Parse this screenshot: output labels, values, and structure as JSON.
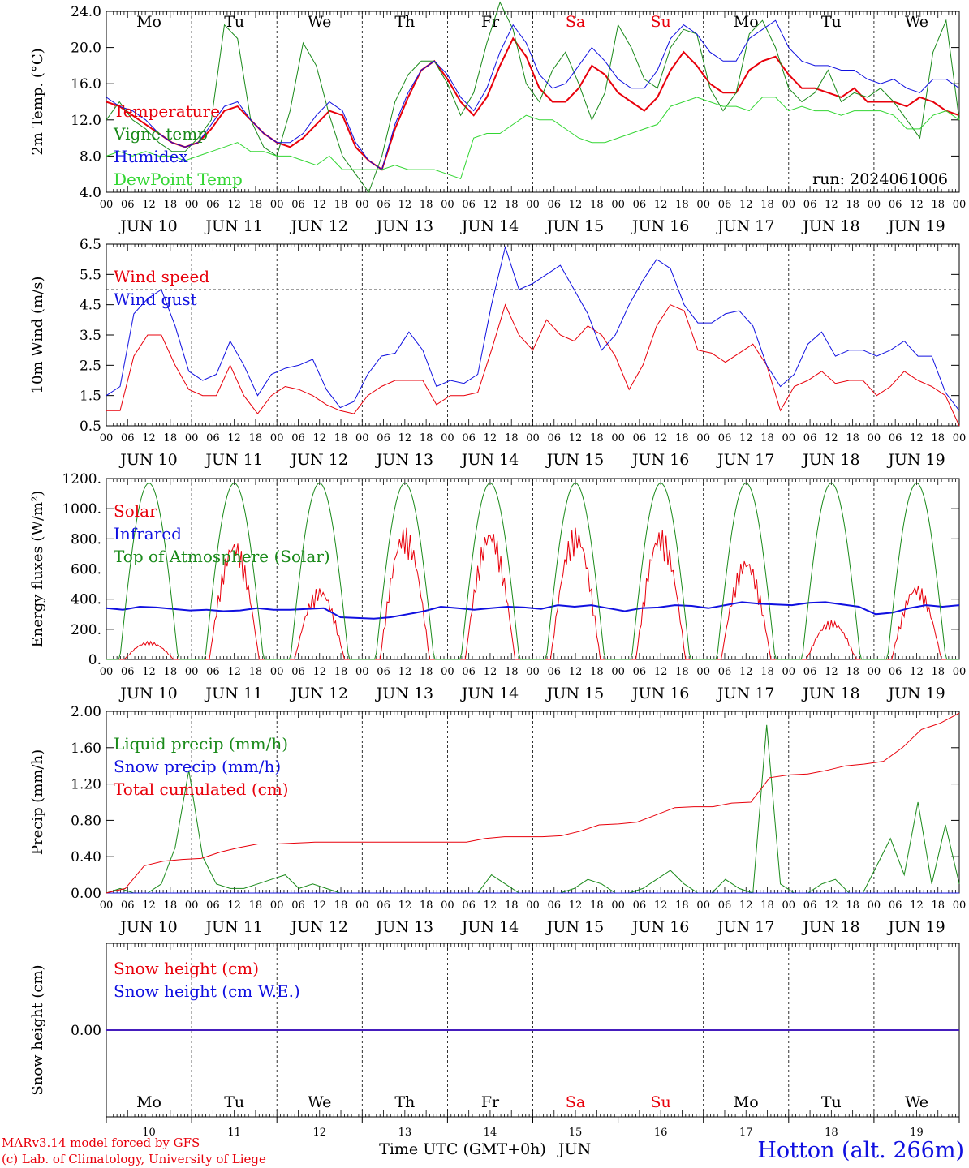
{
  "chart_data": {
    "type": "line",
    "days": [
      {
        "date": "10",
        "label": "JUN 10",
        "weekday": "Mo",
        "weekend": false
      },
      {
        "date": "11",
        "label": "JUN 11",
        "weekday": "Tu",
        "weekend": false
      },
      {
        "date": "12",
        "label": "JUN 12",
        "weekday": "We",
        "weekend": false
      },
      {
        "date": "13",
        "label": "JUN 13",
        "weekday": "Th",
        "weekend": false
      },
      {
        "date": "14",
        "label": "JUN 14",
        "weekday": "Fr",
        "weekend": false
      },
      {
        "date": "15",
        "label": "JUN 15",
        "weekday": "Sa",
        "weekend": true
      },
      {
        "date": "16",
        "label": "JUN 16",
        "weekday": "Su",
        "weekend": true
      },
      {
        "date": "17",
        "label": "JUN 17",
        "weekday": "Mo",
        "weekend": false
      },
      {
        "date": "18",
        "label": "JUN 18",
        "weekday": "Tu",
        "weekend": false
      },
      {
        "date": "19",
        "label": "JUN 19",
        "weekday": "We",
        "weekend": false
      }
    ],
    "hour_ticks": [
      "00",
      "06",
      "12",
      "18"
    ],
    "x_end_tick": "00",
    "x_title": "Time UTC (GMT+0h)",
    "x_month": "JUN",
    "colors": {
      "red": "#e8000b",
      "green": "#1a8a1a",
      "blue": "#1010e0",
      "lime": "#33d633",
      "purple": "#7a2a9a",
      "axis": "#000000"
    },
    "panels": [
      {
        "id": "temperature",
        "ylabel": "2m Temp. (°C)",
        "ylim": [
          4.0,
          24.0
        ],
        "yticks": [
          4.0,
          8.0,
          12.0,
          16.0,
          20.0,
          24.0
        ],
        "ytick_labels": [
          "4.0",
          "8.0",
          "12.0",
          "16.0",
          "20.0",
          "24.0"
        ],
        "run_label": "run: 2024061006",
        "series": [
          {
            "name": "Temperature",
            "color": "#e8000b",
            "width": 2,
            "values": [
              14.0,
              13.5,
              12.5,
              11.5,
              10.5,
              9.5,
              9.0,
              9.5,
              11.0,
              13.0,
              13.5,
              12.0,
              10.5,
              9.5,
              9.0,
              10.0,
              11.5,
              13.0,
              12.5,
              9.0,
              7.5,
              6.5,
              11.0,
              14.5,
              17.5,
              18.5,
              16.5,
              14.0,
              12.5,
              14.5,
              18.0,
              21.0,
              19.0,
              15.5,
              14.0,
              14.0,
              15.5,
              18.0,
              17.0,
              15.0,
              14.0,
              13.0,
              14.5,
              17.5,
              19.5,
              18.0,
              16.0,
              15.0,
              15.0,
              17.5,
              18.5,
              19.0,
              17.0,
              15.5,
              15.5,
              15.0,
              14.5,
              15.5,
              14.0,
              14.0,
              14.0,
              13.5,
              14.5,
              14.0,
              13.0,
              12.5
            ]
          },
          {
            "name": "Vigne temp",
            "color": "#1a8a1a",
            "width": 1,
            "values": [
              12.0,
              14.0,
              12.0,
              11.0,
              9.5,
              8.5,
              8.5,
              10.0,
              12.0,
              22.5,
              21.0,
              12.0,
              9.0,
              8.0,
              13.0,
              20.5,
              18.0,
              12.5,
              8.0,
              6.0,
              4.0,
              8.0,
              14.0,
              17.0,
              18.5,
              18.5,
              16.0,
              12.5,
              15.0,
              20.5,
              25.0,
              22.0,
              16.0,
              14.0,
              17.5,
              19.5,
              16.0,
              12.0,
              15.0,
              22.5,
              20.0,
              16.5,
              15.5,
              20.0,
              22.0,
              21.5,
              15.5,
              13.0,
              15.0,
              21.5,
              23.0,
              20.0,
              15.5,
              14.0,
              15.0,
              17.5,
              14.0,
              15.0,
              14.5,
              15.5,
              14.0,
              12.0,
              10.0,
              19.5,
              23.0,
              12.0
            ]
          },
          {
            "name": "Humidex",
            "color": "#1010e0",
            "width": 1,
            "values": [
              14.5,
              13.5,
              13.0,
              12.0,
              10.5,
              9.5,
              9.0,
              9.5,
              11.5,
              13.5,
              14.0,
              12.0,
              10.5,
              9.5,
              9.5,
              10.5,
              12.5,
              14.0,
              13.0,
              9.5,
              7.5,
              6.5,
              11.5,
              15.0,
              17.5,
              18.5,
              17.0,
              14.5,
              13.0,
              15.5,
              19.5,
              22.5,
              20.5,
              17.0,
              15.5,
              16.0,
              18.0,
              20.0,
              18.5,
              16.5,
              15.5,
              15.5,
              17.5,
              21.0,
              22.5,
              21.5,
              19.5,
              18.5,
              18.5,
              21.0,
              22.0,
              23.0,
              20.0,
              18.5,
              18.0,
              18.0,
              17.5,
              17.5,
              16.5,
              16.0,
              16.5,
              15.5,
              15.0,
              16.5,
              16.5,
              15.5
            ]
          },
          {
            "name": "DewPoint Temp",
            "color": "#33d633",
            "width": 1,
            "values": [
              8.0,
              8.5,
              8.0,
              8.5,
              8.0,
              8.0,
              7.5,
              8.0,
              8.5,
              9.0,
              9.5,
              8.5,
              8.5,
              8.0,
              8.0,
              7.5,
              7.0,
              8.0,
              6.5,
              6.5,
              6.5,
              6.5,
              7.0,
              6.5,
              6.5,
              6.5,
              6.0,
              5.5,
              10.0,
              10.5,
              10.5,
              11.5,
              12.5,
              12.0,
              12.0,
              11.0,
              10.0,
              9.5,
              9.5,
              10.0,
              10.5,
              11.0,
              11.5,
              13.5,
              14.0,
              14.5,
              14.0,
              13.5,
              13.5,
              13.0,
              14.5,
              14.5,
              13.0,
              13.5,
              13.0,
              13.0,
              12.5,
              13.0,
              13.0,
              13.0,
              12.5,
              11.0,
              11.0,
              12.5,
              13.0,
              12.0
            ]
          }
        ]
      },
      {
        "id": "wind",
        "ylabel": "10m Wind (m/s)",
        "ylim": [
          0.5,
          6.5
        ],
        "yticks": [
          0.5,
          1.5,
          2.5,
          3.5,
          4.5,
          5.5,
          6.5
        ],
        "ytick_labels": [
          "0.5",
          "1.5",
          "2.5",
          "3.5",
          "4.5",
          "5.5",
          "6.5"
        ],
        "ref_line": 5.0,
        "series": [
          {
            "name": "Wind speed",
            "color": "#e8000b",
            "width": 1,
            "values": [
              1.0,
              1.0,
              2.8,
              3.5,
              3.5,
              2.5,
              1.7,
              1.5,
              1.5,
              2.5,
              1.5,
              0.9,
              1.5,
              1.8,
              1.7,
              1.5,
              1.2,
              1.0,
              0.9,
              1.5,
              1.8,
              2.0,
              2.0,
              2.0,
              1.2,
              1.5,
              1.5,
              1.6,
              3.0,
              4.5,
              3.5,
              3.0,
              4.0,
              3.5,
              3.3,
              3.8,
              3.5,
              2.8,
              1.7,
              2.5,
              3.8,
              4.5,
              4.3,
              3.0,
              2.9,
              2.6,
              2.9,
              3.2,
              2.5,
              1.0,
              1.8,
              2.0,
              2.3,
              1.9,
              2.0,
              2.0,
              1.5,
              1.8,
              2.3,
              2.0,
              1.8,
              1.5,
              0.5
            ]
          },
          {
            "name": "Wind gust",
            "color": "#1010e0",
            "width": 1,
            "values": [
              1.5,
              1.8,
              4.2,
              4.7,
              5.0,
              3.8,
              2.3,
              2.0,
              2.2,
              3.3,
              2.5,
              1.5,
              2.2,
              2.4,
              2.5,
              2.7,
              1.7,
              1.1,
              1.3,
              2.2,
              2.8,
              2.9,
              3.6,
              3.0,
              1.8,
              2.0,
              1.9,
              2.2,
              4.5,
              6.4,
              5.0,
              5.2,
              5.5,
              5.8,
              5.0,
              4.2,
              3.0,
              3.5,
              4.5,
              5.3,
              6.0,
              5.7,
              4.5,
              3.9,
              3.9,
              4.2,
              4.3,
              3.8,
              2.5,
              1.8,
              2.2,
              3.2,
              3.6,
              2.8,
              3.0,
              3.0,
              2.8,
              3.0,
              3.3,
              2.8,
              2.8,
              1.6,
              1.0
            ]
          }
        ]
      },
      {
        "id": "energy",
        "ylabel": "Energy fluxes (W/m²)",
        "ylim": [
          0,
          1200
        ],
        "yticks": [
          0,
          200,
          400,
          600,
          800,
          1000,
          1200
        ],
        "ytick_labels": [
          "0.",
          "200.",
          "400.",
          "600.",
          "800.",
          "1000.",
          "1200."
        ],
        "toa_peak": 1170,
        "series": [
          {
            "name": "Solar",
            "color": "#e8000b",
            "width": 1,
            "peaks": [
              120,
              800,
              480,
              880,
              880,
              880,
              870,
              680,
              260,
              500
            ]
          },
          {
            "name": "Infrared",
            "color": "#1010e0",
            "width": 2,
            "values": [
              340,
              330,
              350,
              345,
              335,
              325,
              330,
              320,
              325,
              340,
              330,
              330,
              335,
              340,
              280,
              275,
              270,
              280,
              300,
              320,
              350,
              340,
              330,
              340,
              350,
              345,
              335,
              360,
              350,
              360,
              340,
              320,
              340,
              345,
              360,
              355,
              340,
              360,
              380,
              370,
              365,
              360,
              375,
              380,
              365,
              350,
              300,
              310,
              340,
              360,
              350,
              360
            ]
          },
          {
            "name": "Top of Atmosphere (Solar)",
            "color": "#1a8a1a",
            "width": 1
          }
        ]
      },
      {
        "id": "precip",
        "ylabel": "Precip (mm/h)",
        "ylim": [
          0.0,
          2.0
        ],
        "yticks": [
          0.0,
          0.4,
          0.8,
          1.2,
          1.6,
          2.0
        ],
        "ytick_labels": [
          "0.00",
          "0.40",
          "0.80",
          "1.20",
          "1.60",
          "2.00"
        ],
        "series": [
          {
            "name": "Liquid precip (mm/h)",
            "color": "#1a8a1a",
            "width": 1,
            "values": [
              0.0,
              0.05,
              0.0,
              0.0,
              0.1,
              0.5,
              1.35,
              0.4,
              0.1,
              0.05,
              0.05,
              0.1,
              0.15,
              0.2,
              0.05,
              0.1,
              0.05,
              0.0,
              0.0,
              0.0,
              0.0,
              0.0,
              0.0,
              0.0,
              0.0,
              0.0,
              0.0,
              0.0,
              0.2,
              0.1,
              0.0,
              0.0,
              0.0,
              0.0,
              0.05,
              0.15,
              0.1,
              0.0,
              0.0,
              0.05,
              0.15,
              0.25,
              0.1,
              0.0,
              0.0,
              0.15,
              0.05,
              0.0,
              1.85,
              0.1,
              0.0,
              0.0,
              0.1,
              0.15,
              0.0,
              0.0,
              0.3,
              0.6,
              0.2,
              1.0,
              0.1,
              0.75,
              0.1
            ]
          },
          {
            "name": "Snow precip (mm/h)",
            "color": "#1010e0",
            "width": 1,
            "values": [
              0.0,
              0.0
            ]
          },
          {
            "name": "Total cumulated (cm)",
            "color": "#e8000b",
            "width": 1,
            "values": [
              0.0,
              0.05,
              0.3,
              0.35,
              0.37,
              0.38,
              0.45,
              0.5,
              0.54,
              0.54,
              0.55,
              0.56,
              0.56,
              0.56,
              0.56,
              0.56,
              0.56,
              0.56,
              0.56,
              0.56,
              0.6,
              0.62,
              0.62,
              0.62,
              0.63,
              0.68,
              0.75,
              0.76,
              0.78,
              0.86,
              0.94,
              0.95,
              0.95,
              0.99,
              1.0,
              1.27,
              1.3,
              1.31,
              1.35,
              1.4,
              1.42,
              1.45,
              1.6,
              1.8,
              1.87,
              1.98
            ]
          }
        ]
      },
      {
        "id": "snow",
        "ylabel": "Snow height (cm)",
        "ytick_labels": [
          "0.00"
        ],
        "series": [
          {
            "name": "Snow height (cm)",
            "color": "#e8000b",
            "width": 1,
            "values": [
              0.0,
              0.0
            ]
          },
          {
            "name": "Snow height (cm W.E.)",
            "color": "#1010e0",
            "width": 1,
            "values": [
              0.0,
              0.0
            ]
          }
        ]
      }
    ]
  },
  "footer": {
    "credit_line1": "MARv3.14 model forced by GFS",
    "credit_line2": "(c) Lab. of Climatology, University of Liege",
    "station": "Hotton (alt. 266m)"
  }
}
